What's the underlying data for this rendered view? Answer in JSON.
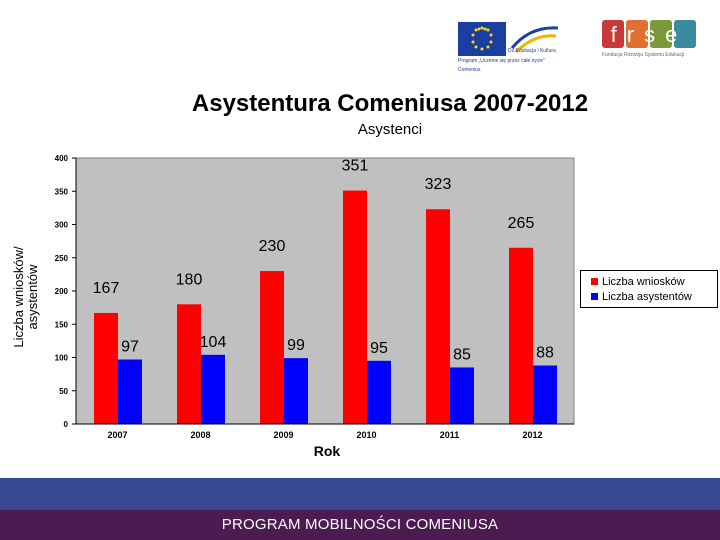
{
  "header": {
    "eu_program_line1": "Dz.Edukacja i Kultura",
    "eu_program_line2": "Program „Uczenie się przez całe życie”",
    "eu_program_line3": "Comenius",
    "frse_logo_text": "frse",
    "frse_subtitle": "Fundacja Rozwoju Systemu Edukacji"
  },
  "footer": {
    "text": "PROGRAM MOBILNOŚCI COMENIUSA"
  },
  "colors": {
    "series1": "#ff0000",
    "series2": "#0000ff",
    "plot_bg": "#c0c0c0",
    "footer_band": "#3a4a92",
    "footer": "#4b1b52"
  },
  "chart_data": {
    "type": "bar",
    "title": "Asystentura Comeniusa 2007-2012",
    "subtitle": "Asystenci",
    "xlabel": "Rok",
    "ylabel_lines": [
      "Liczba wniosków/",
      "asystentów"
    ],
    "categories": [
      "2007",
      "2008",
      "2009",
      "2010",
      "2011",
      "2012"
    ],
    "series": [
      {
        "name": "Liczba wniosków",
        "values": [
          167,
          180,
          230,
          351,
          323,
          265
        ]
      },
      {
        "name": "Liczba asystentów",
        "values": [
          97,
          104,
          99,
          95,
          85,
          88
        ]
      }
    ],
    "ylim": [
      0,
      400
    ],
    "yticks": [
      0,
      50,
      100,
      150,
      200,
      250,
      300,
      350,
      400
    ],
    "grid": false,
    "legend": "right"
  }
}
